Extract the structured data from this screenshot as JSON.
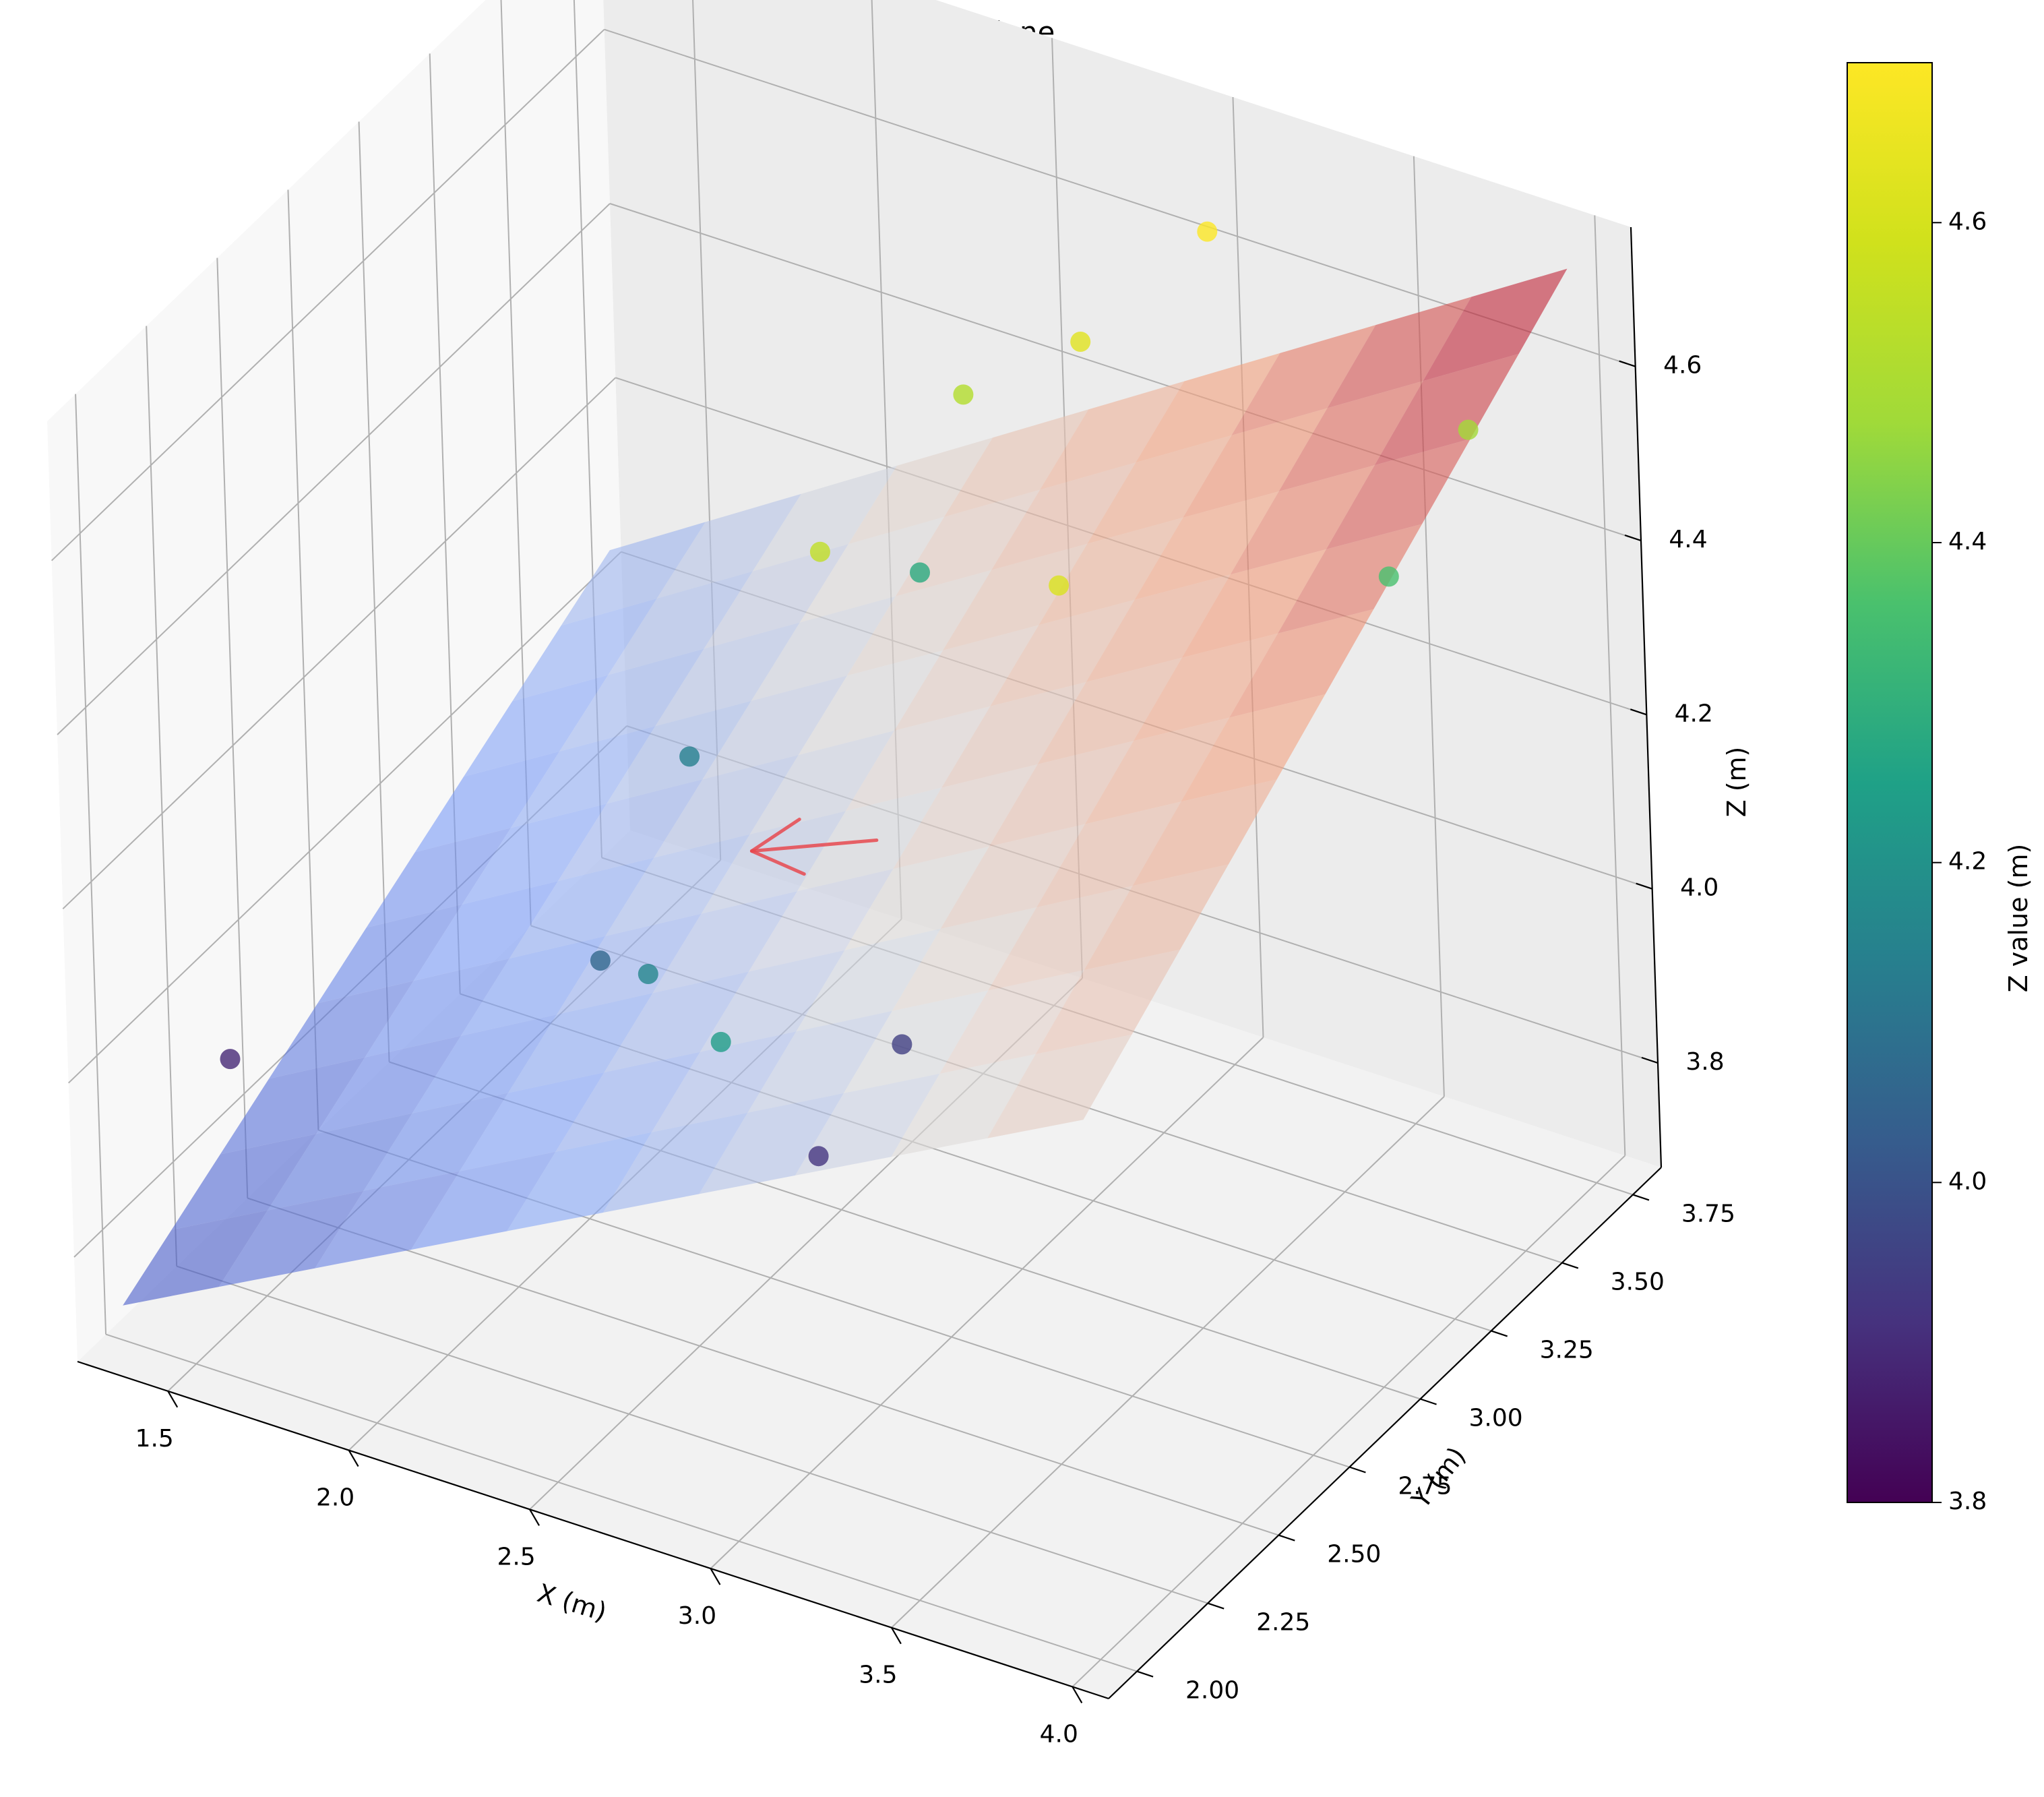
{
  "chart_data": {
    "type": "scatter",
    "title": "Terrain and Optimal Plane",
    "xlabel": "X (m)",
    "ylabel": "Y (m)",
    "zlabel": "Z (m)",
    "colorbar_label": "Z value (m)",
    "xlim": [
      1.25,
      4.1
    ],
    "ylim": [
      1.9,
      3.85
    ],
    "zlim": [
      3.68,
      4.76
    ],
    "xticks": [
      "1.5",
      "2.0",
      "2.5",
      "3.0",
      "3.5",
      "4.0"
    ],
    "yticks": [
      "2.00",
      "2.25",
      "2.50",
      "2.75",
      "3.00",
      "3.25",
      "3.50",
      "3.75"
    ],
    "zticks": [
      "3.8",
      "4.0",
      "4.2",
      "4.4",
      "4.6"
    ],
    "colorbar_range": [
      3.8,
      4.7
    ],
    "colorbar_ticks": [
      "3.8",
      "4.0",
      "4.2",
      "4.4",
      "4.6"
    ],
    "colormap_points": "viridis",
    "colormap_plane": "coolwarm",
    "grid": true,
    "series": [
      {
        "kind": "scatter3d",
        "points": [
          {
            "x": 1.32,
            "y": 2.37,
            "z": 3.89
          },
          {
            "x": 2.97,
            "y": 2.03,
            "z": 4.24
          },
          {
            "x": 3.4,
            "y": 2.71,
            "z": 4.61
          },
          {
            "x": 3.12,
            "y": 3.6,
            "z": 4.7
          },
          {
            "x": 3.66,
            "y": 3.81,
            "z": 4.48
          },
          {
            "x": 2.2,
            "y": 2.57,
            "z": 4.06
          },
          {
            "x": 2.1,
            "y": 3.02,
            "z": 4.14
          },
          {
            "x": 2.45,
            "y": 3.4,
            "z": 4.28
          },
          {
            "x": 2.62,
            "y": 3.36,
            "z": 4.52
          },
          {
            "x": 2.96,
            "y": 3.35,
            "z": 4.63
          },
          {
            "x": 2.79,
            "y": 2.87,
            "z": 3.95
          },
          {
            "x": 2.72,
            "y": 2.73,
            "z": 4.55
          },
          {
            "x": 2.8,
            "y": 2.56,
            "z": 3.92
          },
          {
            "x": 2.52,
            "y": 2.34,
            "z": 4.16
          },
          {
            "x": 3.58,
            "y": 3.62,
            "z": 4.36
          }
        ]
      },
      {
        "kind": "plane",
        "x_range": [
          1.3,
          4.0
        ],
        "y_range": [
          2.0,
          3.75
        ],
        "z_corners": {
          "x0y0": 3.72,
          "x1y0": 4.3,
          "x0y1": 4.04,
          "x1y1": 4.73
        }
      },
      {
        "kind": "arrow",
        "from": {
          "x": 2.55,
          "y": 3.1,
          "z": 4.08
        },
        "to": {
          "x": 2.2,
          "y": 3.1,
          "z": 4.02
        },
        "color": "#e8494f"
      }
    ]
  }
}
